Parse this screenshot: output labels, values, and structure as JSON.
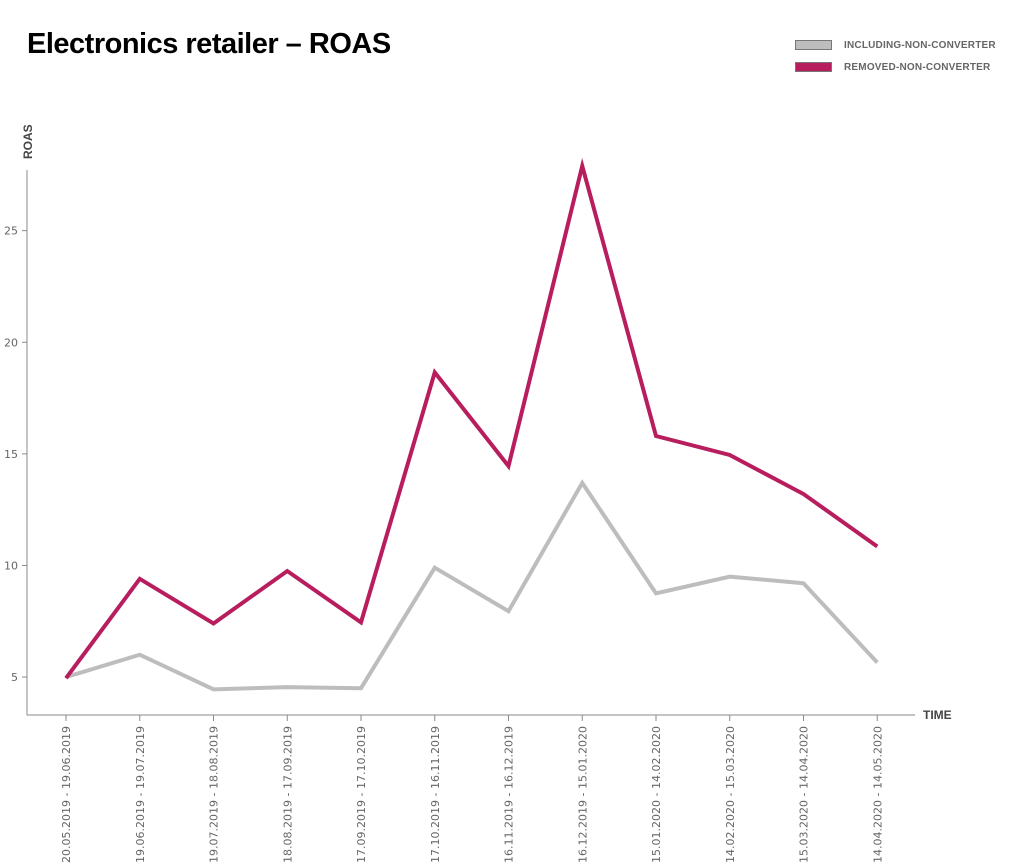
{
  "chart_data": {
    "type": "line",
    "title": "Electronics retailer – ROAS",
    "xlabel": "TIME",
    "ylabel": "ROAS",
    "ylim": [
      3.3,
      28.3
    ],
    "yticks": [
      5,
      10,
      15,
      20,
      25
    ],
    "grid": false,
    "legend_position": "top-right",
    "categories": [
      "20.05.2019 - 19.06.2019",
      "19.06.2019 - 19.07.2019",
      "19.07.2019 - 18.08.2019",
      "18.08.2019 - 17.09.2019",
      "17.09.2019 - 17.10.2019",
      "17.10.2019 - 16.11.2019",
      "16.11.2019 - 16.12.2019",
      "16.12.2019 - 15.01.2020",
      "15.01.2020 - 14.02.2020",
      "14.02.2020 - 15.03.2020",
      "15.03.2020 - 14.04.2020",
      "14.04.2020 - 14.05.2020"
    ],
    "series": [
      {
        "name": "INCLUDING-NON-CONVERTER",
        "color": "#bdbdbd",
        "values": [
          5.0,
          6.0,
          4.45,
          4.55,
          4.5,
          9.9,
          7.95,
          13.7,
          8.75,
          9.5,
          9.2,
          5.65
        ]
      },
      {
        "name": "REMOVED-NON-CONVERTER",
        "color": "#b81d5e",
        "values": [
          4.95,
          9.4,
          7.4,
          9.75,
          7.45,
          18.65,
          14.45,
          27.9,
          15.8,
          14.95,
          13.2,
          10.85
        ]
      }
    ]
  }
}
